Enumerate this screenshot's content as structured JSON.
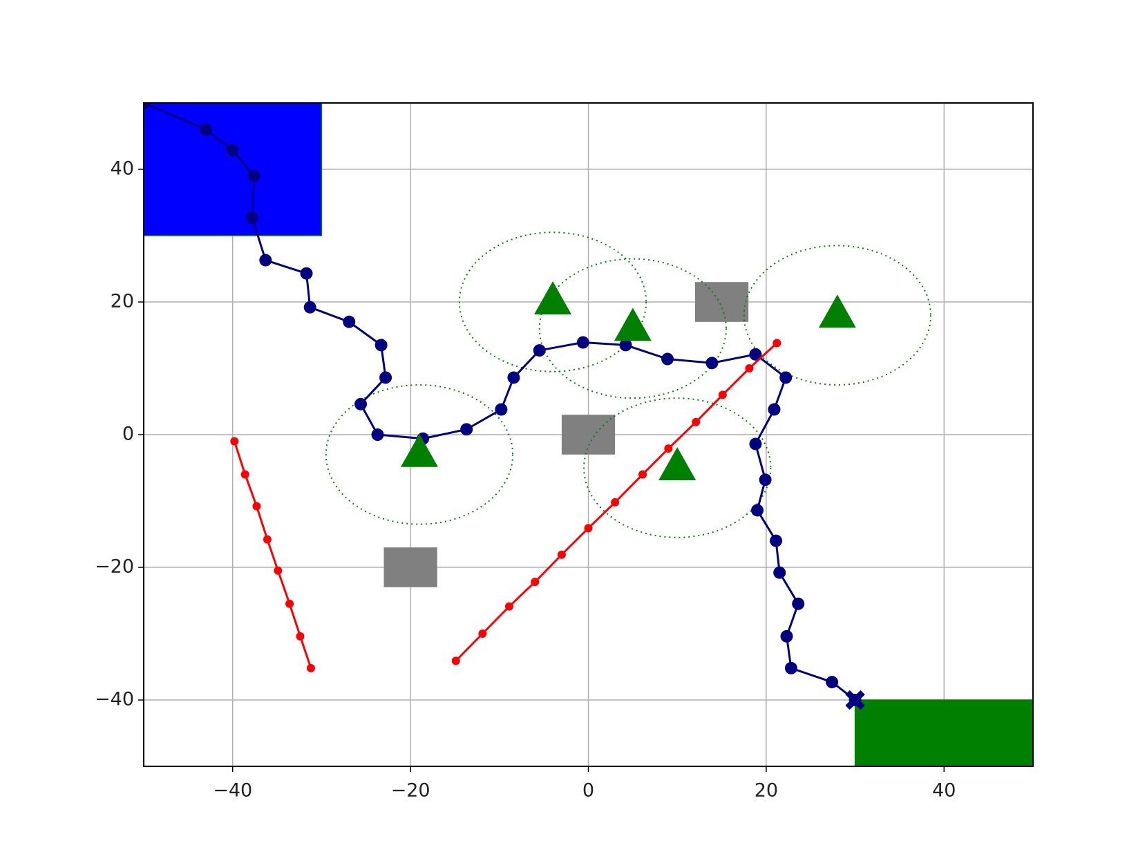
{
  "chart_data": {
    "type": "path",
    "xlim": [
      -50,
      50
    ],
    "ylim": [
      -50,
      50
    ],
    "xticks": [
      {
        "value": -40,
        "label": "−40"
      },
      {
        "value": -20,
        "label": "−20"
      },
      0,
      20,
      40
    ],
    "yticks": [
      {
        "value": -40,
        "label": "−40"
      },
      {
        "value": -20,
        "label": "−20"
      },
      0,
      20,
      40
    ],
    "grid": true,
    "regions": [
      {
        "color": "#0000ff",
        "x": [
          -50,
          -30
        ],
        "y": [
          30,
          50
        ]
      },
      {
        "color": "#008000",
        "x": [
          30,
          50
        ],
        "y": [
          -50,
          -40
        ]
      }
    ],
    "obstacles": {
      "color": "#808080",
      "size": 6,
      "x": [
        15,
        0,
        -20
      ],
      "y": [
        20,
        0,
        -20
      ]
    },
    "targets": {
      "color": "#008000",
      "radius": 10.5,
      "x": [
        -4,
        5,
        28,
        -19,
        10
      ],
      "y": [
        20,
        16,
        18,
        -3,
        -5
      ]
    },
    "series": [
      {
        "color": "#000080",
        "x": [
          -50,
          -43.0,
          -40.0,
          -37.6,
          -37.8,
          -36.3,
          -31.7,
          -31.3,
          -26.9,
          -23.3,
          -22.8,
          -25.6,
          -23.7,
          -18.6,
          -13.7,
          -9.8,
          -8.4,
          -5.5,
          -0.6,
          4.2,
          8.9,
          13.9,
          18.8,
          22.2,
          20.9,
          18.8,
          19.9,
          19.0,
          21.1,
          21.5,
          23.6,
          22.3,
          22.8,
          27.4,
          30.0
        ],
        "y": [
          50,
          46.0,
          42.9,
          39.0,
          32.7,
          26.3,
          24.3,
          19.2,
          17.0,
          13.5,
          8.6,
          4.6,
          0.0,
          -0.6,
          0.8,
          3.8,
          8.6,
          12.7,
          13.9,
          13.5,
          11.4,
          10.8,
          12.1,
          8.6,
          3.8,
          -1.4,
          -6.8,
          -11.4,
          -16.0,
          -20.8,
          -25.5,
          -30.4,
          -35.2,
          -37.3,
          -40.0
        ]
      },
      {
        "color": "#ff0000",
        "x": [
          -39.8,
          -38.6,
          -37.3,
          -36.1,
          -34.9,
          -33.6,
          -32.4,
          -31.2
        ],
        "y": [
          -1.0,
          -6.0,
          -10.8,
          -15.8,
          -20.5,
          -25.5,
          -30.4,
          -35.2
        ]
      },
      {
        "color": "#ff0000",
        "x": [
          -14.9,
          -11.9,
          -8.9,
          -6.0,
          -3.0,
          0.0,
          3.0,
          6.1,
          9.0,
          12.1,
          15.1,
          18.1,
          21.2
        ],
        "y": [
          -34.1,
          -30.0,
          -25.9,
          -22.2,
          -18.1,
          -14.1,
          -10.2,
          -6.0,
          -2.1,
          1.9,
          6.0,
          10.0,
          13.8
        ]
      }
    ],
    "goal": {
      "x": 30,
      "y": -40,
      "color": "#000080"
    }
  }
}
